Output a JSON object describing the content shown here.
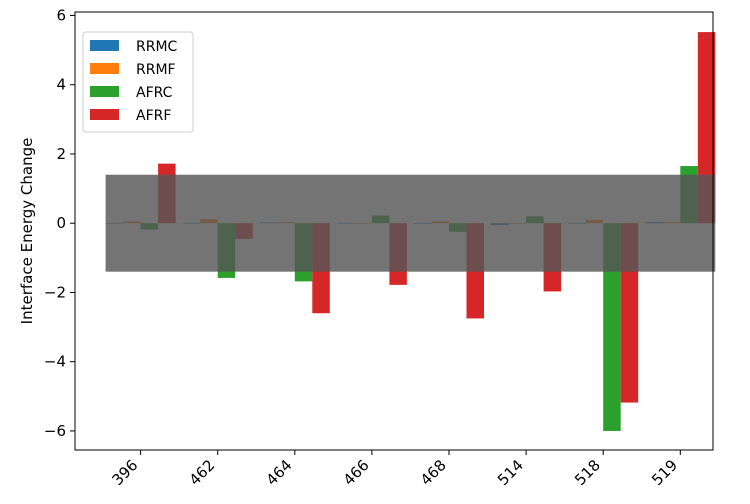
{
  "chart_data": {
    "type": "bar",
    "categories": [
      "396",
      "462",
      "464",
      "466",
      "468",
      "514",
      "518",
      "519"
    ],
    "series": [
      {
        "name": "RRMC",
        "color": "#1f77b4",
        "values": [
          0.0,
          0.0,
          0.02,
          0.0,
          0.0,
          -0.05,
          0.0,
          0.03
        ]
      },
      {
        "name": "RRMF",
        "color": "#ff7f0e",
        "values": [
          0.05,
          0.12,
          0.03,
          0.0,
          0.05,
          0.0,
          0.1,
          0.03
        ]
      },
      {
        "name": "AFRC",
        "color": "#2ca02c",
        "values": [
          -0.18,
          -1.58,
          -1.68,
          0.22,
          -0.25,
          0.2,
          -6.0,
          1.65
        ]
      },
      {
        "name": "AFRF",
        "color": "#d62728",
        "values": [
          1.72,
          -0.45,
          -2.6,
          -1.78,
          -2.75,
          -1.97,
          -5.18,
          5.52
        ]
      }
    ],
    "ylabel": "Interface Energy Change",
    "xlabel": "",
    "ylim": [
      -6.55,
      6.1
    ],
    "yticks": [
      -6,
      -4,
      -2,
      0,
      2,
      4,
      6
    ],
    "band": {
      "from": -1.4,
      "to": 1.4,
      "color": "#555555",
      "opacity": 0.82
    },
    "legend_position": "top-left",
    "grid": false
  }
}
